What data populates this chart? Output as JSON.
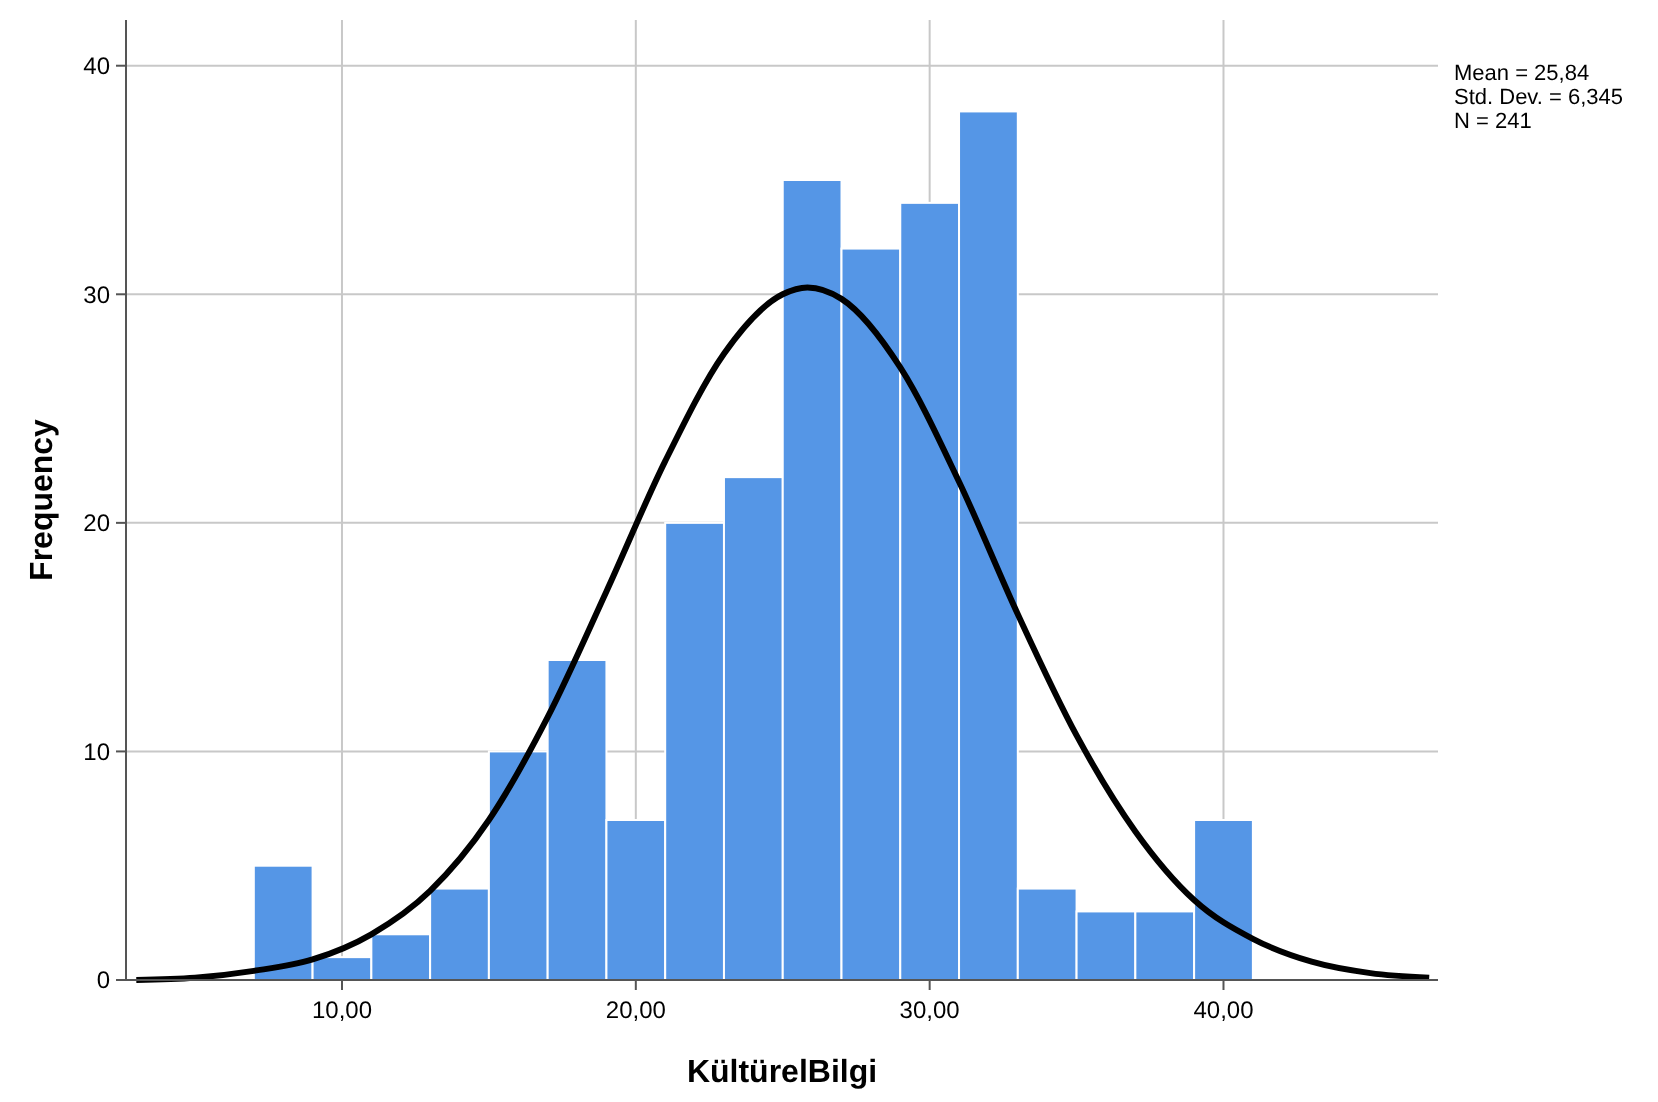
{
  "chart_data": {
    "type": "histogram",
    "xlabel": "KültürelBilgi",
    "ylabel": "Frequency",
    "bins": [
      7,
      9,
      11,
      13,
      15,
      17,
      19,
      21,
      23,
      25,
      27,
      29,
      31,
      33,
      35,
      37,
      39,
      41
    ],
    "values": [
      5,
      1,
      2,
      4,
      10,
      14,
      7,
      20,
      22,
      35,
      32,
      34,
      38,
      4,
      3,
      3,
      7
    ],
    "color": "#5596e6",
    "series": [
      {
        "type": "line",
        "color": "#000000",
        "x": [
          3,
          5,
          7,
          9,
          11,
          13,
          15,
          17,
          19,
          21,
          23,
          25,
          25.84,
          27,
          29,
          31,
          33,
          35,
          37,
          39,
          41,
          43,
          45,
          47
        ],
        "values": [
          0,
          0.1,
          0.4,
          0.9,
          2,
          3.9,
          7,
          11.5,
          17,
          22.7,
          27.4,
          30,
          30.3,
          29.8,
          26.8,
          21.8,
          16,
          10.7,
          6.5,
          3.5,
          1.8,
          0.8,
          0.3,
          0.1
        ]
      }
    ],
    "xlim": [
      2.65,
      47.3
    ],
    "ylim": [
      0,
      42
    ],
    "xticks": [
      {
        "value": 10,
        "label": "10,00"
      },
      {
        "value": 20,
        "label": "20,00"
      },
      {
        "value": 30,
        "label": "30,00"
      },
      {
        "value": 40,
        "label": "40,00"
      }
    ],
    "yticks": [
      0,
      10,
      20,
      30,
      40
    ],
    "grid": true,
    "annotations": [
      "Mean = 25,84",
      "Std. Dev. = 6,345",
      "N = 241"
    ]
  }
}
